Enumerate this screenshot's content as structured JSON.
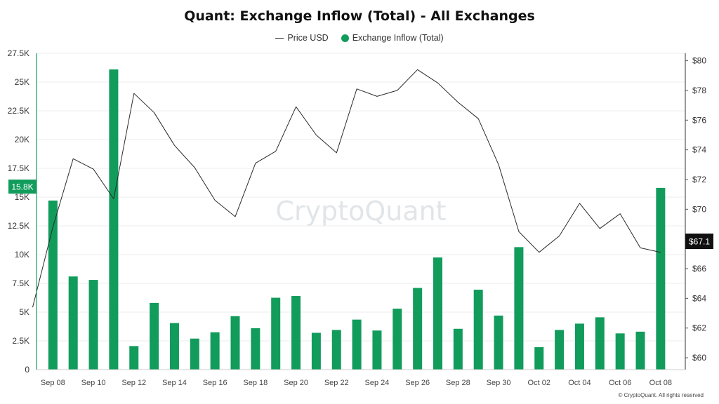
{
  "title": "Quant: Exchange Inflow (Total) - All Exchanges",
  "legend": {
    "price_label": "Price USD",
    "inflow_label": "Exchange Inflow (Total)"
  },
  "watermark": "CryptoQuant",
  "copyright": "© CryptoQuant. All rights reserved",
  "colors": {
    "bar": "#119c5c",
    "line": "#2a2a2a",
    "price_tag": "#111111",
    "grid": "#ececec",
    "left_axis": "#119c5c"
  },
  "chart_data": {
    "type": "bar",
    "x": [
      "Sep 07",
      "Sep 08",
      "Sep 09",
      "Sep 10",
      "Sep 11",
      "Sep 12",
      "Sep 13",
      "Sep 14",
      "Sep 15",
      "Sep 16",
      "Sep 17",
      "Sep 18",
      "Sep 19",
      "Sep 20",
      "Sep 21",
      "Sep 22",
      "Sep 23",
      "Sep 24",
      "Sep 25",
      "Sep 26",
      "Sep 27",
      "Sep 28",
      "Sep 29",
      "Sep 30",
      "Oct 01",
      "Oct 02",
      "Oct 03",
      "Oct 04",
      "Oct 05",
      "Oct 06",
      "Oct 07",
      "Oct 08"
    ],
    "x_tick_labels": [
      "Sep 08",
      "Sep 10",
      "Sep 12",
      "Sep 14",
      "Sep 16",
      "Sep 18",
      "Sep 20",
      "Sep 22",
      "Sep 24",
      "Sep 26",
      "Sep 28",
      "Sep 30",
      "Oct 02",
      "Oct 04",
      "Oct 06",
      "Oct 08"
    ],
    "series": [
      {
        "name": "Exchange Inflow (Total)",
        "type": "bar",
        "axis": "left",
        "values": [
          null,
          14700,
          8100,
          7800,
          26100,
          2050,
          5800,
          4050,
          2700,
          3250,
          4650,
          3600,
          6250,
          6400,
          3200,
          3450,
          4350,
          3400,
          5300,
          7100,
          9750,
          3550,
          6950,
          4700,
          10650,
          1950,
          3450,
          4000,
          4550,
          3150,
          3300,
          15800
        ]
      },
      {
        "name": "Price USD",
        "type": "line",
        "axis": "right",
        "values": [
          63.4,
          68.8,
          73.4,
          72.7,
          70.7,
          77.8,
          76.5,
          74.3,
          72.8,
          70.6,
          69.5,
          73.1,
          73.9,
          76.9,
          75.0,
          73.8,
          78.1,
          77.6,
          78.0,
          79.4,
          78.5,
          77.2,
          76.1,
          73.0,
          68.5,
          67.1,
          68.2,
          70.4,
          68.7,
          69.7,
          67.4,
          67.1
        ]
      }
    ],
    "y_left": {
      "ticks": [
        "0",
        "2.5K",
        "5K",
        "7.5K",
        "10K",
        "12.5K",
        "15K",
        "17.5K",
        "20K",
        "22.5K",
        "25K",
        "27.5K"
      ],
      "range": [
        0,
        27500
      ]
    },
    "y_right": {
      "ticks": [
        "$60",
        "$62",
        "$64",
        "$66",
        "$68",
        "$70",
        "$72",
        "$74",
        "$76",
        "$78",
        "$80"
      ],
      "range": [
        59.2,
        80.5
      ]
    },
    "last_value_labels": {
      "left": "15.8K",
      "right": "$67.1"
    },
    "grid": "horizontal",
    "legend_position": "top-center"
  }
}
